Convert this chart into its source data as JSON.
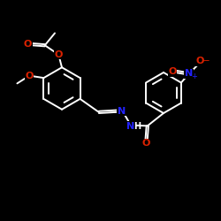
{
  "bg": "#000000",
  "wht": "#ffffff",
  "red": "#dd2200",
  "blu": "#2222ff",
  "lw": 1.4,
  "fs": 8.0,
  "xlim": [
    0,
    10
  ],
  "ylim": [
    0,
    10
  ]
}
